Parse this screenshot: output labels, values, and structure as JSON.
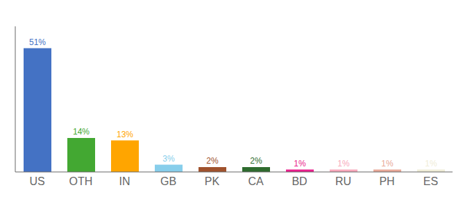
{
  "chart_data": {
    "type": "bar",
    "categories": [
      "US",
      "OTH",
      "IN",
      "GB",
      "PK",
      "CA",
      "BD",
      "RU",
      "PH",
      "ES"
    ],
    "values": [
      51,
      14,
      13,
      3,
      2,
      2,
      1,
      1,
      1,
      1
    ],
    "value_labels": [
      "51%",
      "14%",
      "13%",
      "3%",
      "2%",
      "2%",
      "1%",
      "1%",
      "1%",
      "1%"
    ],
    "data_labels": true,
    "colors": [
      "#4472C4",
      "#43A832",
      "#FFA500",
      "#87CEEB",
      "#A0522D",
      "#2E6B2E",
      "#E91E8C",
      "#F8A8BB",
      "#E8A898",
      "#F0EDD8"
    ],
    "ylim": [
      0,
      60
    ],
    "tick_labels": "x",
    "grid": false
  }
}
